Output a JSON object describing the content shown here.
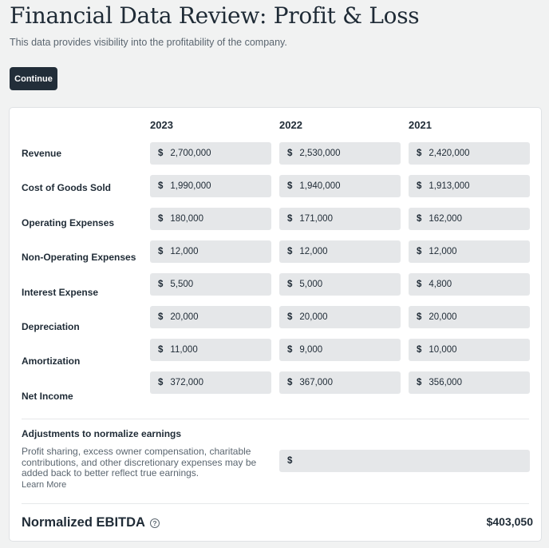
{
  "header": {
    "title": "Financial Data Review: Profit & Loss",
    "subtitle": "This data provides visibility into the profitability of the company.",
    "continue_label": "Continue"
  },
  "table": {
    "currency_symbol": "$",
    "years": [
      "2023",
      "2022",
      "2021"
    ],
    "rows": [
      {
        "label": "Revenue",
        "values": [
          "2,700,000",
          "2,530,000",
          "2,420,000"
        ]
      },
      {
        "label": "Cost of Goods Sold",
        "values": [
          "1,990,000",
          "1,940,000",
          "1,913,000"
        ]
      },
      {
        "label": "Operating Expenses",
        "values": [
          "180,000",
          "171,000",
          "162,000"
        ]
      },
      {
        "label": "Non-Operating Expenses",
        "values": [
          "12,000",
          "12,000",
          "12,000"
        ]
      },
      {
        "label": "Interest Expense",
        "values": [
          "5,500",
          "5,000",
          "4,800"
        ]
      },
      {
        "label": "Depreciation",
        "values": [
          "20,000",
          "20,000",
          "20,000"
        ]
      },
      {
        "label": "Amortization",
        "values": [
          "11,000",
          "9,000",
          "10,000"
        ]
      },
      {
        "label": "Net Income",
        "values": [
          "372,000",
          "367,000",
          "356,000"
        ]
      }
    ]
  },
  "adjustments": {
    "title": "Adjustments to normalize earnings",
    "description": "Profit sharing, excess owner compensation, charitable contributions, and other discretionary expenses may be added back to better reflect true earnings.",
    "learn_more": "Learn More",
    "currency_symbol": "$",
    "value": ""
  },
  "summary": {
    "label": "Normalized EBITDA",
    "help_glyph": "?",
    "value": "$403,050"
  },
  "colors": {
    "primary_button": "#222e39",
    "field_background": "#e5e7e9",
    "page_background": "#f1f2f2"
  }
}
